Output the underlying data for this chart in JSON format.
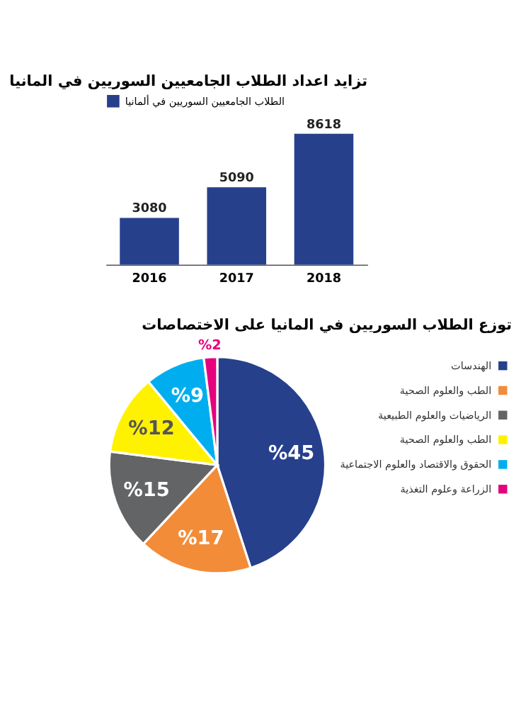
{
  "chart_data": [
    {
      "type": "bar",
      "title": "تزايد اعداد الطلاب الجامعيين السوريين في المانيا",
      "categories": [
        "2016",
        "2017",
        "2018"
      ],
      "series": [
        {
          "name": "الطلاب الجامعيين السوريين في ألمانيا",
          "color": "#26408b",
          "values": [
            3080,
            5090,
            8618
          ]
        }
      ],
      "data_labels": true,
      "legend": "top left"
    },
    {
      "type": "pie",
      "title": "توزع الطلاب السوريين في المانيا على الاختصاصات",
      "categories": [
        "الهندسات",
        "الطب والعلوم الصحية",
        "الرياضيات والعلوم الطبيعية",
        "الطب والعلوم الصحية",
        "الحقوق والاقتصاد والعلوم الاجتماعية",
        "الزراعة وعلوم التغذية"
      ],
      "values": [
        45,
        17,
        15,
        12,
        9,
        2
      ],
      "colors": [
        "#26408b",
        "#f28c38",
        "#636466",
        "#fff200",
        "#00aeef",
        "#e6007e"
      ],
      "value_labels": [
        "%45",
        "%17",
        "%15",
        "%12",
        "%9",
        "%2"
      ],
      "legend": "right"
    }
  ]
}
